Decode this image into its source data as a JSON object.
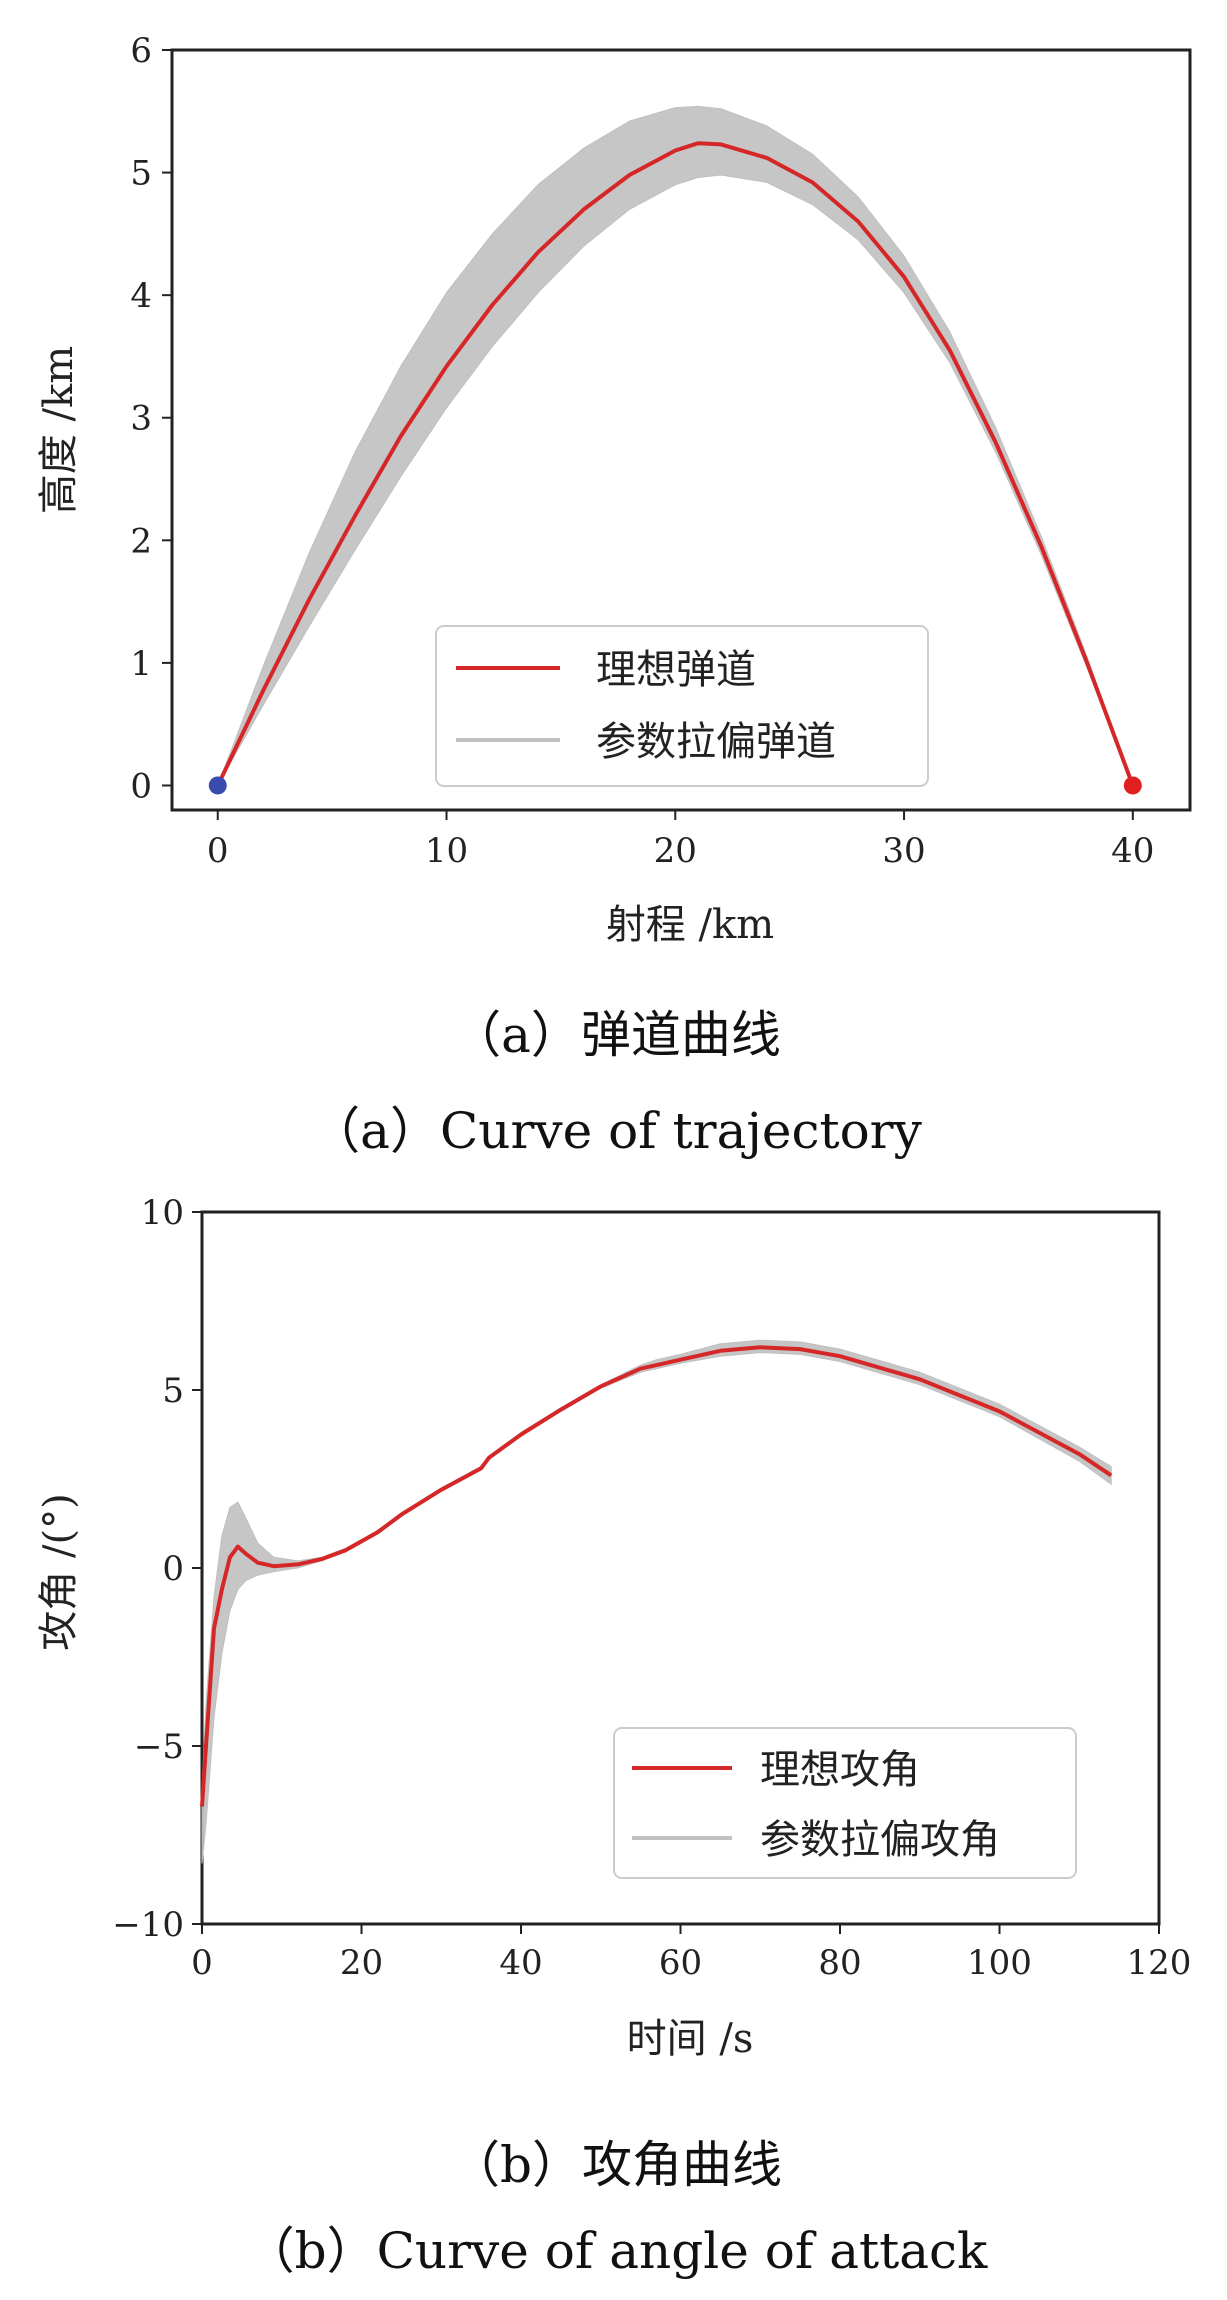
{
  "chart_data": [
    {
      "type": "line",
      "xlabel": "射程 /km",
      "ylabel": "高度 /km",
      "xlim": [
        -2,
        42.5
      ],
      "ylim": [
        -0.2,
        6
      ],
      "xticks": [
        "0",
        "10",
        "20",
        "30",
        "40"
      ],
      "yticks": [
        "0",
        "1",
        "2",
        "3",
        "4",
        "5",
        "6"
      ],
      "legend_position": "lower center",
      "caption_cn": "（a）弹道曲线",
      "caption_en": "（a）Curve of trajectory",
      "series": [
        {
          "name": "理想弹道",
          "color": "#d62728",
          "x": [
            0,
            2,
            4,
            6,
            8,
            10,
            12,
            14,
            16,
            18,
            20,
            21,
            22,
            24,
            26,
            28,
            30,
            32,
            34,
            36,
            38,
            40
          ],
          "y": [
            0,
            0.78,
            1.52,
            2.2,
            2.85,
            3.42,
            3.92,
            4.35,
            4.7,
            4.98,
            5.18,
            5.24,
            5.23,
            5.12,
            4.92,
            4.6,
            4.15,
            3.55,
            2.8,
            1.95,
            1.0,
            0
          ]
        },
        {
          "name": "参数拉偏弹道",
          "color": "#c0c0c0",
          "band_x": [
            0,
            2,
            4,
            6,
            8,
            10,
            12,
            14,
            16,
            18,
            20,
            21,
            22,
            24,
            26,
            28,
            30,
            32,
            34,
            36,
            38,
            40
          ],
          "band_upper": [
            0,
            0.98,
            1.9,
            2.72,
            3.42,
            4.02,
            4.5,
            4.9,
            5.2,
            5.42,
            5.53,
            5.54,
            5.52,
            5.38,
            5.15,
            4.8,
            4.32,
            3.7,
            2.92,
            2.03,
            1.05,
            0
          ],
          "band_lower": [
            0,
            0.66,
            1.3,
            1.92,
            2.52,
            3.08,
            3.58,
            4.02,
            4.4,
            4.7,
            4.9,
            4.96,
            4.98,
            4.92,
            4.74,
            4.45,
            4.02,
            3.45,
            2.72,
            1.88,
            0.96,
            0
          ]
        }
      ],
      "markers": [
        {
          "x": 0,
          "y": 0,
          "color": "#3a4bb0"
        },
        {
          "x": 40,
          "y": 0,
          "color": "#e02020"
        }
      ]
    },
    {
      "type": "line",
      "xlabel": "时间 /s",
      "ylabel": "攻角 /(°)",
      "xlim": [
        0,
        120
      ],
      "ylim": [
        -10,
        10
      ],
      "xticks": [
        "0",
        "20",
        "40",
        "60",
        "80",
        "100",
        "120"
      ],
      "yticks": [
        "10",
        "5",
        "0",
        "−5",
        "−10"
      ],
      "legend_position": "lower right",
      "caption_cn": "（b）攻角曲线",
      "caption_en": "（b）Curve of angle of attack",
      "series": [
        {
          "name": "理想攻角",
          "color": "#d62728",
          "x": [
            0,
            0.5,
            1.5,
            2.5,
            3.5,
            4.5,
            5.5,
            7,
            9,
            12,
            15,
            18,
            22,
            25,
            30,
            35,
            36,
            40,
            45,
            50,
            55,
            57,
            60,
            65,
            70,
            75,
            80,
            90,
            100,
            110,
            114
          ],
          "y": [
            -6.7,
            -5,
            -1.7,
            -0.6,
            0.3,
            0.6,
            0.4,
            0.15,
            0.05,
            0.1,
            0.25,
            0.5,
            1.0,
            1.5,
            2.2,
            2.8,
            3.1,
            3.75,
            4.45,
            5.1,
            5.6,
            5.7,
            5.85,
            6.1,
            6.2,
            6.15,
            5.95,
            5.3,
            4.4,
            3.2,
            2.6
          ]
        },
        {
          "name": "参数拉偏攻角",
          "color": "#c0c0c0",
          "band_x": [
            0,
            0.5,
            1.5,
            2.5,
            3.5,
            4.5,
            5.5,
            7,
            9,
            12,
            15,
            18,
            22,
            25,
            30,
            35,
            36,
            40,
            45,
            50,
            55,
            57,
            60,
            65,
            70,
            75,
            80,
            90,
            100,
            110,
            114
          ],
          "band_upper": [
            -6.2,
            -3.8,
            -0.8,
            0.9,
            1.7,
            1.85,
            1.4,
            0.7,
            0.3,
            0.2,
            0.3,
            0.55,
            1.05,
            1.55,
            2.25,
            2.85,
            3.15,
            3.8,
            4.5,
            5.15,
            5.7,
            5.85,
            6.0,
            6.3,
            6.4,
            6.35,
            6.15,
            5.5,
            4.6,
            3.4,
            2.85
          ],
          "band_lower": [
            -8.3,
            -7.2,
            -4.2,
            -2.4,
            -1.2,
            -0.6,
            -0.35,
            -0.2,
            -0.1,
            0.0,
            0.2,
            0.45,
            0.95,
            1.45,
            2.15,
            2.75,
            3.05,
            3.7,
            4.4,
            5.05,
            5.5,
            5.6,
            5.75,
            5.95,
            6.05,
            6.0,
            5.8,
            5.15,
            4.25,
            3.0,
            2.35
          ]
        }
      ]
    }
  ]
}
